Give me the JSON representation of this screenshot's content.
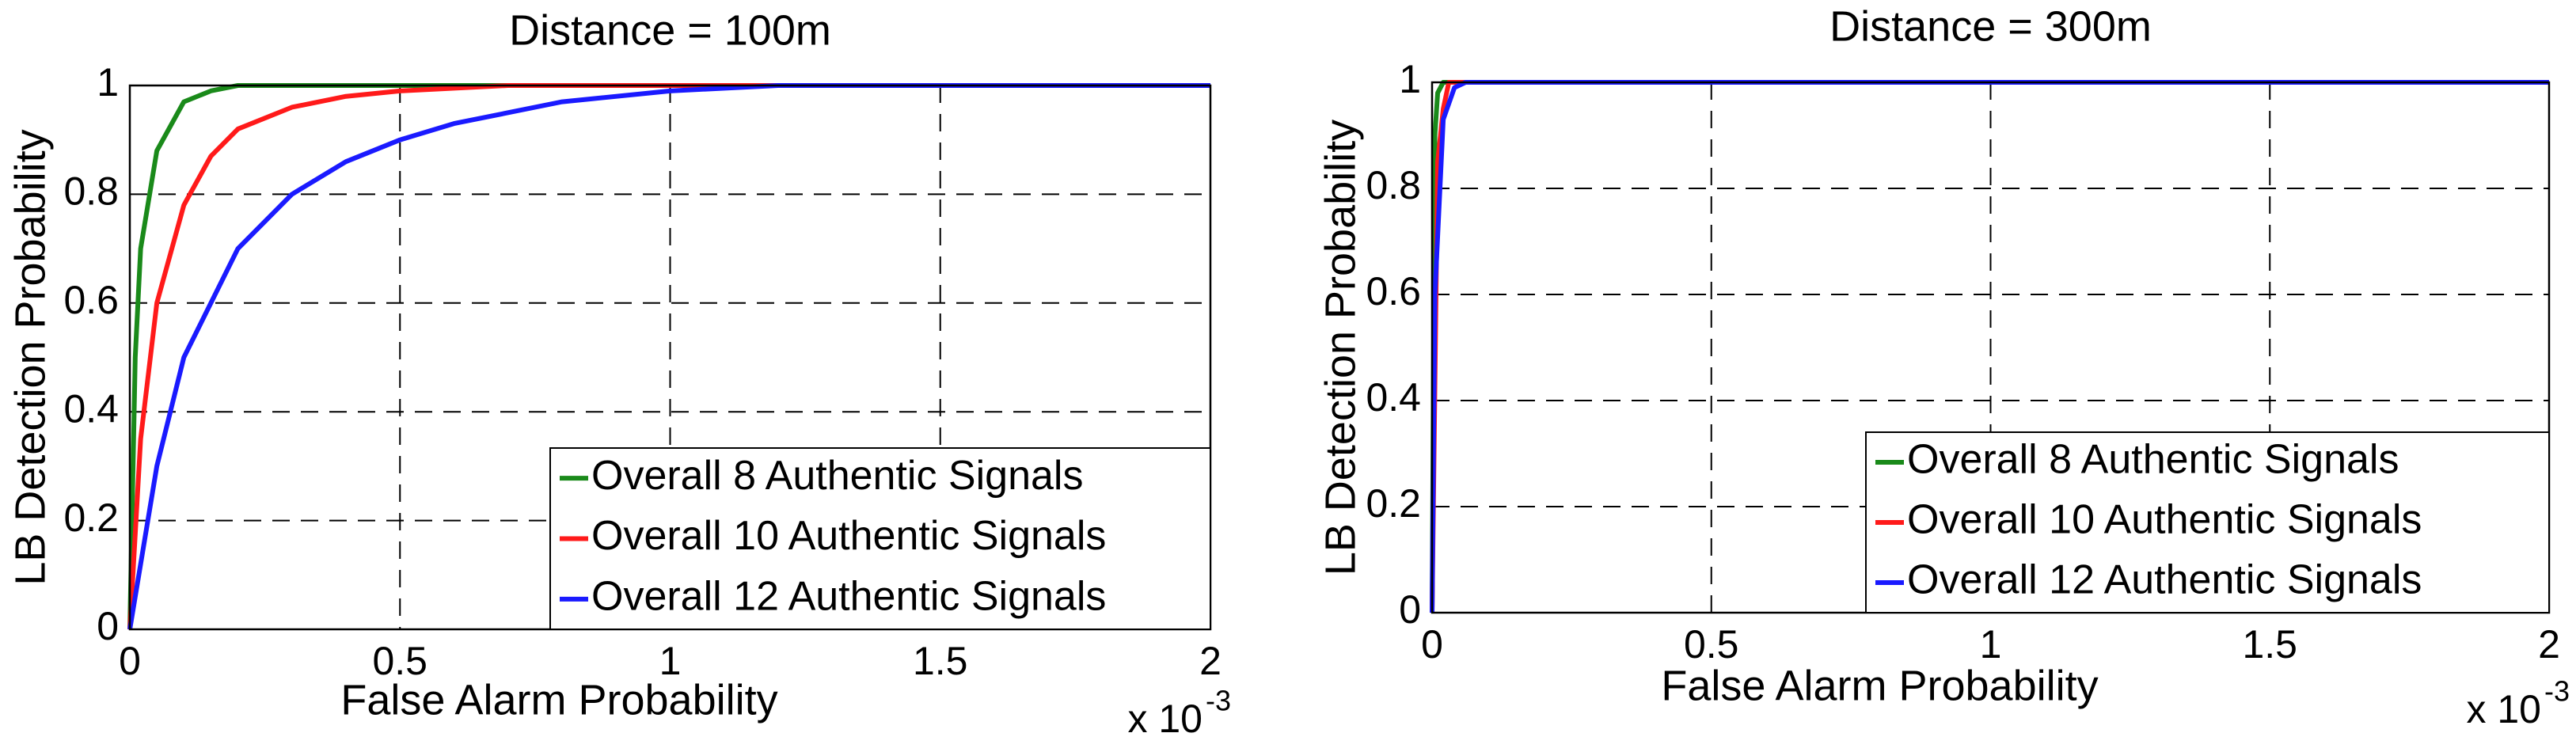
{
  "chart_data": [
    {
      "type": "line",
      "title": "Distance = 100m",
      "x_label": "False Alarm Probability",
      "y_label": "LB Detection Probability",
      "x_multiplier": "x 10",
      "x_multiplier_exponent": "-3",
      "xlim": [
        0,
        2
      ],
      "xticks": [
        0,
        0.5,
        1,
        1.5,
        2
      ],
      "ylim": [
        0,
        1
      ],
      "yticks": [
        0,
        0.2,
        0.4,
        0.6,
        0.8,
        1
      ],
      "grid": true,
      "legend": "lower right",
      "series": [
        {
          "name": "Overall 8 Authentic Signals",
          "color": "#1a8a1a",
          "x": [
            0,
            0.01,
            0.02,
            0.05,
            0.1,
            0.15,
            0.2,
            0.3,
            0.5,
            2
          ],
          "values": [
            0,
            0.5,
            0.7,
            0.88,
            0.97,
            0.99,
            1,
            1,
            1,
            1
          ]
        },
        {
          "name": "Overall 10 Authentic Signals",
          "color": "#ff1a1a",
          "x": [
            0,
            0.02,
            0.05,
            0.1,
            0.15,
            0.2,
            0.3,
            0.4,
            0.5,
            0.7,
            1,
            2
          ],
          "values": [
            0,
            0.35,
            0.6,
            0.78,
            0.87,
            0.92,
            0.96,
            0.98,
            0.99,
            1,
            1,
            1
          ]
        },
        {
          "name": "Overall 12 Authentic Signals",
          "color": "#1a1aff",
          "x": [
            0,
            0.05,
            0.1,
            0.2,
            0.3,
            0.4,
            0.5,
            0.6,
            0.8,
            1,
            1.2,
            1.5,
            2
          ],
          "values": [
            0,
            0.3,
            0.5,
            0.7,
            0.8,
            0.86,
            0.9,
            0.93,
            0.97,
            0.99,
            1,
            1,
            1
          ]
        }
      ]
    },
    {
      "type": "line",
      "title": "Distance = 300m",
      "x_label": "False Alarm Probability",
      "y_label": "LB Detection Probability",
      "x_multiplier": "x 10",
      "x_multiplier_exponent": "-3",
      "xlim": [
        0,
        2
      ],
      "xticks": [
        0,
        0.5,
        1,
        1.5,
        2
      ],
      "ylim": [
        0,
        1
      ],
      "yticks": [
        0,
        0.2,
        0.4,
        0.6,
        0.8,
        1
      ],
      "grid": true,
      "legend": "lower right",
      "series": [
        {
          "name": "Overall 8 Authentic Signals",
          "color": "#1a8a1a",
          "x": [
            0,
            0.005,
            0.01,
            0.02,
            2
          ],
          "values": [
            0,
            0.9,
            0.98,
            1,
            1
          ]
        },
        {
          "name": "Overall 10 Authentic Signals",
          "color": "#ff1a1a",
          "x": [
            0,
            0.01,
            0.02,
            0.03,
            2
          ],
          "values": [
            0,
            0.85,
            0.95,
            1,
            1
          ]
        },
        {
          "name": "Overall 12 Authentic Signals",
          "color": "#1a1aff",
          "x": [
            0,
            0.005,
            0.02,
            0.04,
            0.06,
            2
          ],
          "values": [
            0,
            0.6,
            0.93,
            0.99,
            1,
            1
          ]
        }
      ]
    }
  ]
}
